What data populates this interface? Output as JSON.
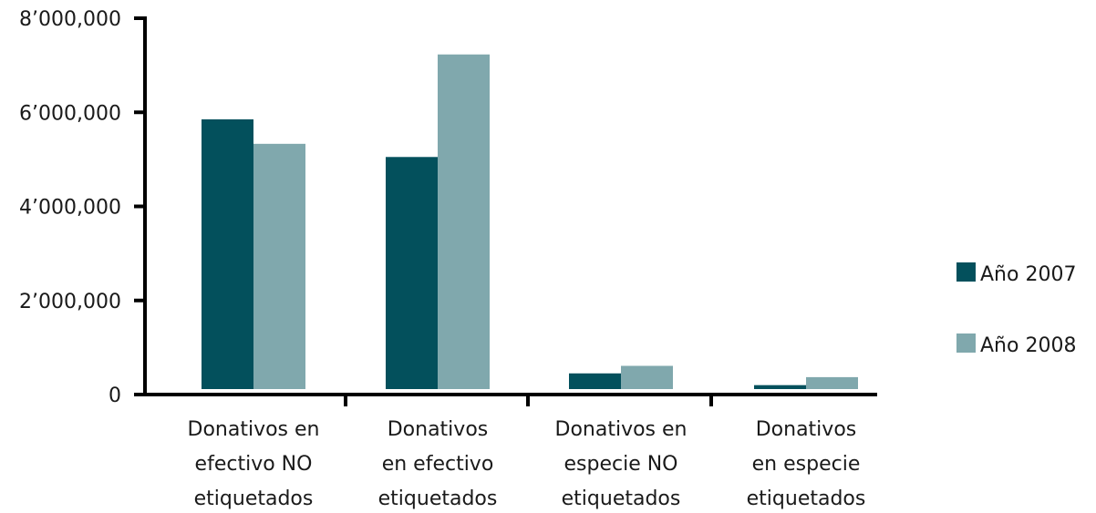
{
  "chart_data": {
    "type": "bar",
    "title": "",
    "xlabel": "",
    "ylabel": "",
    "ylim": [
      0,
      8000000
    ],
    "y_ticks": [
      {
        "value": 0,
        "label": "0"
      },
      {
        "value": 2000000,
        "label": "2’000,000"
      },
      {
        "value": 4000000,
        "label": "4’000,000"
      },
      {
        "value": 6000000,
        "label": "6’000,000"
      },
      {
        "value": 8000000,
        "label": "8’000,000"
      }
    ],
    "categories": [
      [
        "Donativos en",
        "efectivo NO",
        "etiquetados"
      ],
      [
        "Donativos",
        "en efectivo",
        "etiquetados"
      ],
      [
        "Donativos en",
        "especie NO",
        "etiquetados"
      ],
      [
        "Donativos",
        "en especie",
        "etiquetados"
      ]
    ],
    "series": [
      {
        "name": "Año 2007",
        "color": "#03505c",
        "values": [
          5850000,
          5050000,
          450000,
          200000
        ]
      },
      {
        "name": "Año 2008",
        "color": "#80a8ad",
        "values": [
          5330000,
          7230000,
          610000,
          370000
        ]
      }
    ],
    "grid": false,
    "legend_position": "right"
  }
}
